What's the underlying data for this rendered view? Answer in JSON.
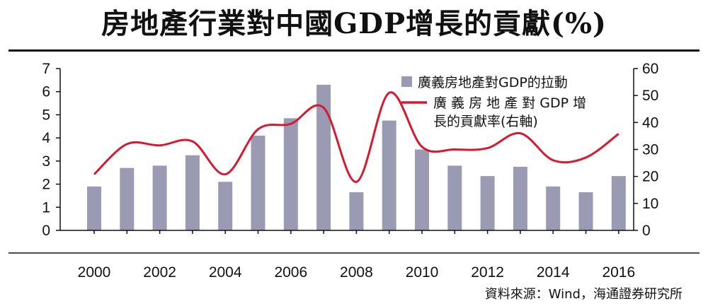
{
  "title": "房地產行業對中國GDP增長的貢獻(%)",
  "source": "資料來源：Wind，海通證券研究所",
  "chart_data": {
    "type": "bar",
    "x": [
      2000,
      2001,
      2002,
      2003,
      2004,
      2005,
      2006,
      2007,
      2008,
      2009,
      2010,
      2011,
      2012,
      2013,
      2014,
      2015,
      2016
    ],
    "x_tick_labels": [
      "2000",
      "2002",
      "2004",
      "2006",
      "2008",
      "2010",
      "2012",
      "2014",
      "2016"
    ],
    "left_axis": {
      "ylim": [
        0,
        7
      ],
      "ticks": [
        "0",
        "1",
        "2",
        "3",
        "4",
        "5",
        "6",
        "7"
      ]
    },
    "right_axis": {
      "ylim": [
        0,
        60
      ],
      "ticks": [
        "0",
        "10",
        "20",
        "30",
        "40",
        "50",
        "60"
      ]
    },
    "series": [
      {
        "name": "廣義房地產對GDP的拉動",
        "kind": "bar",
        "axis": "left",
        "color": "#9b9ab3",
        "values": [
          1.9,
          2.7,
          2.8,
          3.25,
          2.1,
          4.1,
          4.85,
          6.3,
          1.65,
          4.75,
          3.5,
          2.8,
          2.35,
          2.75,
          1.9,
          1.65,
          2.35
        ]
      },
      {
        "name": "廣義房地產對GDP增長的貢獻率(右軸)",
        "legend_lines": [
          "廣 義 房 地 產 對 GDP 增",
          "長的貢獻率(右軸)"
        ],
        "kind": "line",
        "axis": "right",
        "color": "#d7192f",
        "values": [
          20.8,
          32.0,
          31.5,
          33.0,
          20.8,
          37.5,
          39.5,
          45.5,
          18.0,
          51.0,
          31.0,
          30.0,
          30.5,
          36.0,
          26.0,
          27.0,
          35.8
        ]
      }
    ],
    "grid": false,
    "legend_position": "top-right"
  }
}
